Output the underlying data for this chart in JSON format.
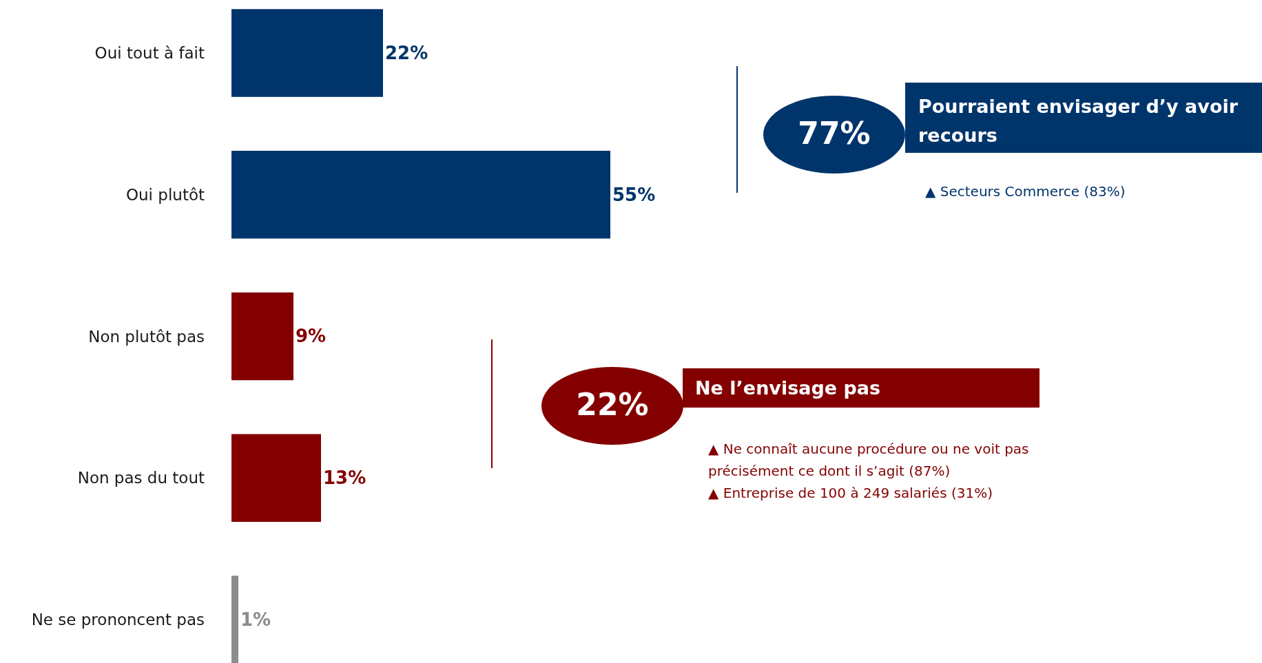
{
  "chart_data": {
    "type": "bar",
    "orientation": "horizontal",
    "categories": [
      "Oui tout à fait",
      "Oui plutôt",
      "Non plutôt pas",
      "Non pas du tout",
      "Ne se prononcent pas"
    ],
    "values": [
      22,
      55,
      9,
      13,
      1
    ],
    "colors": [
      "#00356b",
      "#00356b",
      "#840000",
      "#840000",
      "#8c8c8c"
    ],
    "value_labels": [
      "22%",
      "55%",
      "9%",
      "13%",
      "1%"
    ],
    "annotations": [
      "77%",
      "Pourraient envisager d’y avoir recours",
      "▲ Secteurs Commerce (83%)",
      "22%",
      "Ne l’envisage pas",
      "▲ Ne connaît aucune procédure ou ne voit pas précisément ce dont il s’agit (87%)",
      "▲ Entreprise de 100 à 249 salariés (31%)"
    ]
  }
}
